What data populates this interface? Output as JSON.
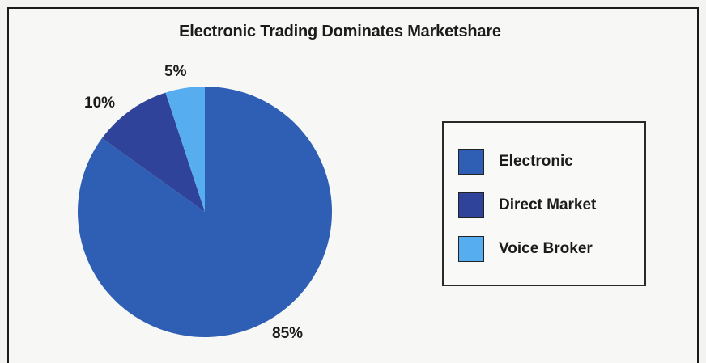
{
  "chart_data": {
    "type": "pie",
    "title": "Electronic Trading Dominates Marketshare",
    "slices": [
      {
        "label": "Electronic",
        "value": 85,
        "display": "85%",
        "color": "#2f5fb4"
      },
      {
        "label": "Direct Market",
        "value": 10,
        "display": "10%",
        "color": "#30439a"
      },
      {
        "label": "Voice Broker",
        "value": 5,
        "display": "5%",
        "color": "#56aef0"
      }
    ],
    "legend_position": "right"
  }
}
